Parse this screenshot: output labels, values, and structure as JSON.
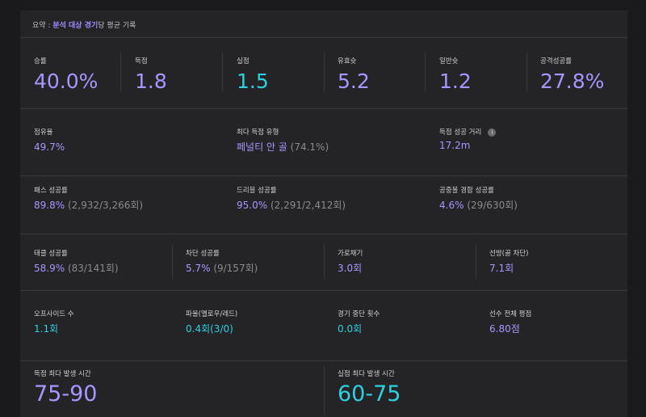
{
  "summary": {
    "prefix": "요약",
    "sep": " : ",
    "highlight": "분석 대상 경기",
    "suffix": "당 평균 기록"
  },
  "row1": [
    {
      "label": "승률",
      "value": "40.0%",
      "color": "purple"
    },
    {
      "label": "득점",
      "value": "1.8",
      "color": "purple"
    },
    {
      "label": "실점",
      "value": "1.5",
      "color": "teal"
    },
    {
      "label": "유효슛",
      "value": "5.2",
      "color": "purple"
    },
    {
      "label": "일반슛",
      "value": "1.2",
      "color": "purple"
    },
    {
      "label": "공격성공률",
      "value": "27.8%",
      "color": "purple"
    }
  ],
  "row2": [
    {
      "label": "점유율",
      "value": "49.7%",
      "sub": ""
    },
    {
      "label": "최다 득점 유형",
      "value": "페널티 안 골",
      "sub": " (74.1%)"
    },
    {
      "label": "득점 성공 거리",
      "value": "17.2m",
      "sub": "",
      "info": "i"
    }
  ],
  "row3": [
    {
      "label": "패스 성공률",
      "value": "89.8%",
      "sub": " (2,932/3,266회)"
    },
    {
      "label": "드리블 성공률",
      "value": "95.0%",
      "sub": " (2,291/2,412회)"
    },
    {
      "label": "공중볼 경합 성공률",
      "value": "4.6%",
      "sub": " (29/630회)"
    }
  ],
  "row4": [
    {
      "label": "태클 성공률",
      "value": "58.9%",
      "sub": " (83/141회)"
    },
    {
      "label": "차단 성공률",
      "value": "5.7%",
      "sub": " (9/157회)"
    },
    {
      "label": "가로채기",
      "value": "3.0회",
      "sub": ""
    },
    {
      "label": "선방(골 차단)",
      "value": "7.1회",
      "sub": ""
    }
  ],
  "row5": [
    {
      "label": "오프사이드 수",
      "value": "1.1회",
      "color": "teal"
    },
    {
      "label": "파울(옐로우/레드)",
      "value": "0.4회(3/0)",
      "color": "teal"
    },
    {
      "label": "경기 중단 횟수",
      "value": "0.0회",
      "color": "teal"
    },
    {
      "label": "선수 전체 평점",
      "value": "6.80점",
      "color": "purple"
    }
  ],
  "row6": [
    {
      "label": "득점 최다 발생 시간",
      "value": "75-90",
      "color": "purple"
    },
    {
      "label": "실점 최다 발생 시간",
      "value": "60-75",
      "color": "teal"
    }
  ],
  "colors": {
    "purple": "#a796ff",
    "teal": "#2ed0e0",
    "background": "#1a1a1c",
    "card": "#242426"
  }
}
